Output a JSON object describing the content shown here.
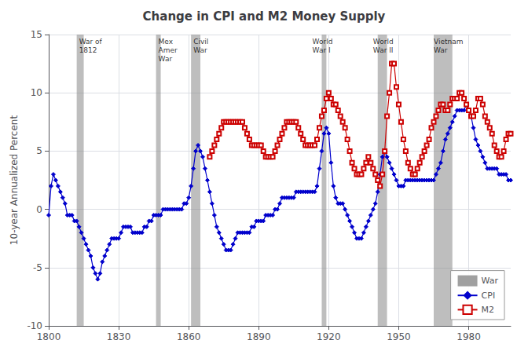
{
  "chart_data": {
    "type": "line",
    "title": "Change in CPI and M2 Money Supply",
    "ylabel": "10-year Annualized Percent",
    "xlim": [
      1800,
      1998
    ],
    "ylim": [
      -10,
      15
    ],
    "xticks": [
      1800,
      1830,
      1860,
      1890,
      1920,
      1950,
      1980
    ],
    "yticks": [
      -10,
      -5,
      0,
      5,
      10,
      15
    ],
    "grid": true,
    "legend": "lower right",
    "shaded": {
      "name": "War",
      "color": "#888888",
      "spans": [
        {
          "start": 1812,
          "end": 1815
        },
        {
          "start": 1846,
          "end": 1848
        },
        {
          "start": 1861,
          "end": 1865
        },
        {
          "start": 1917,
          "end": 1919
        },
        {
          "start": 1941,
          "end": 1945
        },
        {
          "start": 1965,
          "end": 1973
        }
      ]
    },
    "annotations": [
      {
        "x": 1812,
        "text": "War of\n1812"
      },
      {
        "x": 1846,
        "text": "Mex\nAmer\nWar"
      },
      {
        "x": 1861,
        "text": "Civil\nWar"
      },
      {
        "x": 1912,
        "text": "World\nWar I"
      },
      {
        "x": 1938,
        "text": "World\nWar II"
      },
      {
        "x": 1964,
        "text": "Vietnam\nWar"
      }
    ],
    "series": [
      {
        "name": "CPI",
        "color": "#0000cc",
        "marker": "diamond",
        "x": [
          1800,
          1801,
          1802,
          1803,
          1804,
          1805,
          1806,
          1807,
          1808,
          1809,
          1810,
          1811,
          1812,
          1813,
          1814,
          1815,
          1816,
          1817,
          1818,
          1819,
          1820,
          1821,
          1822,
          1823,
          1824,
          1825,
          1826,
          1827,
          1828,
          1829,
          1830,
          1831,
          1832,
          1833,
          1834,
          1835,
          1836,
          1837,
          1838,
          1839,
          1840,
          1841,
          1842,
          1843,
          1844,
          1845,
          1846,
          1847,
          1848,
          1849,
          1850,
          1851,
          1852,
          1853,
          1854,
          1855,
          1856,
          1857,
          1858,
          1859,
          1860,
          1861,
          1862,
          1863,
          1864,
          1865,
          1866,
          1867,
          1868,
          1869,
          1870,
          1871,
          1872,
          1873,
          1874,
          1875,
          1876,
          1877,
          1878,
          1879,
          1880,
          1881,
          1882,
          1883,
          1884,
          1885,
          1886,
          1887,
          1888,
          1889,
          1890,
          1891,
          1892,
          1893,
          1894,
          1895,
          1896,
          1897,
          1898,
          1899,
          1900,
          1901,
          1902,
          1903,
          1904,
          1905,
          1906,
          1907,
          1908,
          1909,
          1910,
          1911,
          1912,
          1913,
          1914,
          1915,
          1916,
          1917,
          1918,
          1919,
          1920,
          1921,
          1922,
          1923,
          1924,
          1925,
          1926,
          1927,
          1928,
          1929,
          1930,
          1931,
          1932,
          1933,
          1934,
          1935,
          1936,
          1937,
          1938,
          1939,
          1940,
          1941,
          1942,
          1943,
          1944,
          1945,
          1946,
          1947,
          1948,
          1949,
          1950,
          1951,
          1952,
          1953,
          1954,
          1955,
          1956,
          1957,
          1958,
          1959,
          1960,
          1961,
          1962,
          1963,
          1964,
          1965,
          1966,
          1967,
          1968,
          1969,
          1970,
          1971,
          1972,
          1973,
          1974,
          1975,
          1976,
          1977,
          1978,
          1979,
          1980,
          1981,
          1982,
          1983,
          1984,
          1985,
          1986,
          1987,
          1988,
          1989,
          1990,
          1991,
          1992,
          1993,
          1994,
          1995,
          1996,
          1997,
          1998
        ],
        "values": [
          -0.5,
          2.0,
          3.0,
          2.5,
          2.0,
          1.5,
          1.0,
          0.5,
          -0.5,
          -0.5,
          -0.5,
          -1.0,
          -1.0,
          -1.5,
          -2.0,
          -2.5,
          -3.0,
          -3.5,
          -4.0,
          -5.0,
          -5.5,
          -6.0,
          -5.5,
          -4.5,
          -4.0,
          -3.5,
          -3.0,
          -2.5,
          -2.5,
          -2.5,
          -2.5,
          -2.0,
          -1.5,
          -1.5,
          -1.5,
          -1.5,
          -2.0,
          -2.0,
          -2.0,
          -2.0,
          -2.0,
          -1.5,
          -1.5,
          -1.0,
          -1.0,
          -0.5,
          -0.5,
          -0.5,
          -0.5,
          0.0,
          0.0,
          0.0,
          0.0,
          0.0,
          0.0,
          0.0,
          0.0,
          0.0,
          0.5,
          0.5,
          1.0,
          2.0,
          3.5,
          5.0,
          5.5,
          5.0,
          4.5,
          3.5,
          2.5,
          1.5,
          0.5,
          -0.5,
          -1.5,
          -2.0,
          -2.5,
          -3.0,
          -3.5,
          -3.5,
          -3.5,
          -3.0,
          -2.5,
          -2.0,
          -2.0,
          -2.0,
          -2.0,
          -2.0,
          -2.0,
          -1.5,
          -1.5,
          -1.0,
          -1.0,
          -1.0,
          -1.0,
          -0.5,
          -0.5,
          -0.5,
          -0.5,
          0.0,
          0.0,
          0.5,
          1.0,
          1.0,
          1.0,
          1.0,
          1.0,
          1.0,
          1.5,
          1.5,
          1.5,
          1.5,
          1.5,
          1.5,
          1.5,
          1.5,
          1.5,
          2.0,
          3.5,
          5.0,
          6.5,
          7.0,
          6.5,
          4.0,
          2.0,
          1.0,
          0.5,
          0.5,
          0.5,
          0.0,
          -0.5,
          -1.0,
          -1.5,
          -2.0,
          -2.5,
          -2.5,
          -2.5,
          -2.0,
          -1.5,
          -1.0,
          -0.5,
          0.0,
          0.5,
          1.5,
          3.0,
          4.5,
          5.0,
          4.5,
          4.0,
          3.5,
          3.0,
          2.5,
          2.0,
          2.0,
          2.0,
          2.5,
          2.5,
          2.5,
          2.5,
          2.5,
          2.5,
          2.5,
          2.5,
          2.5,
          2.5,
          2.5,
          2.5,
          2.5,
          3.0,
          3.5,
          4.0,
          5.0,
          6.0,
          6.5,
          7.0,
          7.5,
          8.0,
          8.5,
          8.5,
          8.5,
          8.5,
          9.0,
          8.5,
          8.0,
          7.0,
          6.0,
          5.5,
          5.0,
          4.5,
          4.0,
          3.5,
          3.5,
          3.5,
          3.5,
          3.5,
          3.0,
          3.0,
          3.0,
          3.0,
          2.5,
          2.5
        ]
      },
      {
        "name": "M2",
        "color": "#cc0000",
        "marker": "square",
        "x": [
          1869,
          1870,
          1871,
          1872,
          1873,
          1874,
          1875,
          1876,
          1877,
          1878,
          1879,
          1880,
          1881,
          1882,
          1883,
          1884,
          1885,
          1886,
          1887,
          1888,
          1889,
          1890,
          1891,
          1892,
          1893,
          1894,
          1895,
          1896,
          1897,
          1898,
          1899,
          1900,
          1901,
          1902,
          1903,
          1904,
          1905,
          1906,
          1907,
          1908,
          1909,
          1910,
          1911,
          1912,
          1913,
          1914,
          1915,
          1916,
          1917,
          1918,
          1919,
          1920,
          1921,
          1922,
          1923,
          1924,
          1925,
          1926,
          1927,
          1928,
          1929,
          1930,
          1931,
          1932,
          1933,
          1934,
          1935,
          1936,
          1937,
          1938,
          1939,
          1940,
          1941,
          1942,
          1943,
          1944,
          1945,
          1946,
          1947,
          1948,
          1949,
          1950,
          1951,
          1952,
          1953,
          1954,
          1955,
          1956,
          1957,
          1958,
          1959,
          1960,
          1961,
          1962,
          1963,
          1964,
          1965,
          1966,
          1967,
          1968,
          1969,
          1970,
          1971,
          1972,
          1973,
          1974,
          1975,
          1976,
          1977,
          1978,
          1979,
          1980,
          1981,
          1982,
          1983,
          1984,
          1985,
          1986,
          1987,
          1988,
          1989,
          1990,
          1991,
          1992,
          1993,
          1994,
          1995,
          1996,
          1997,
          1998
        ],
        "values": [
          4.5,
          5.0,
          5.5,
          6.0,
          6.5,
          7.0,
          7.5,
          7.5,
          7.5,
          7.5,
          7.5,
          7.5,
          7.5,
          7.5,
          7.5,
          7.0,
          6.5,
          6.0,
          5.5,
          5.5,
          5.5,
          5.5,
          5.5,
          5.0,
          4.5,
          4.5,
          4.5,
          4.5,
          5.0,
          5.5,
          6.0,
          6.5,
          7.0,
          7.5,
          7.5,
          7.5,
          7.5,
          7.5,
          7.0,
          6.5,
          6.0,
          5.5,
          5.5,
          5.5,
          5.5,
          5.5,
          6.0,
          7.0,
          8.0,
          8.5,
          9.5,
          10.0,
          9.5,
          9.0,
          9.0,
          8.5,
          8.0,
          7.5,
          7.0,
          6.0,
          5.0,
          4.0,
          3.5,
          3.0,
          3.0,
          3.0,
          3.5,
          4.0,
          4.5,
          4.0,
          3.5,
          3.0,
          2.5,
          2.0,
          3.0,
          5.0,
          8.0,
          10.0,
          12.5,
          12.5,
          10.5,
          9.0,
          7.5,
          6.0,
          5.0,
          4.0,
          3.5,
          3.0,
          3.0,
          3.5,
          4.0,
          4.5,
          5.0,
          5.5,
          6.0,
          7.0,
          7.5,
          8.0,
          8.5,
          9.0,
          9.0,
          8.5,
          8.5,
          9.0,
          9.5,
          9.5,
          9.5,
          10.0,
          10.0,
          9.5,
          9.0,
          8.5,
          8.0,
          8.0,
          8.5,
          9.5,
          9.5,
          9.0,
          8.0,
          7.5,
          7.0,
          6.5,
          5.5,
          5.0,
          4.5,
          4.5,
          5.0,
          6.0,
          6.5,
          6.5
        ]
      }
    ]
  }
}
